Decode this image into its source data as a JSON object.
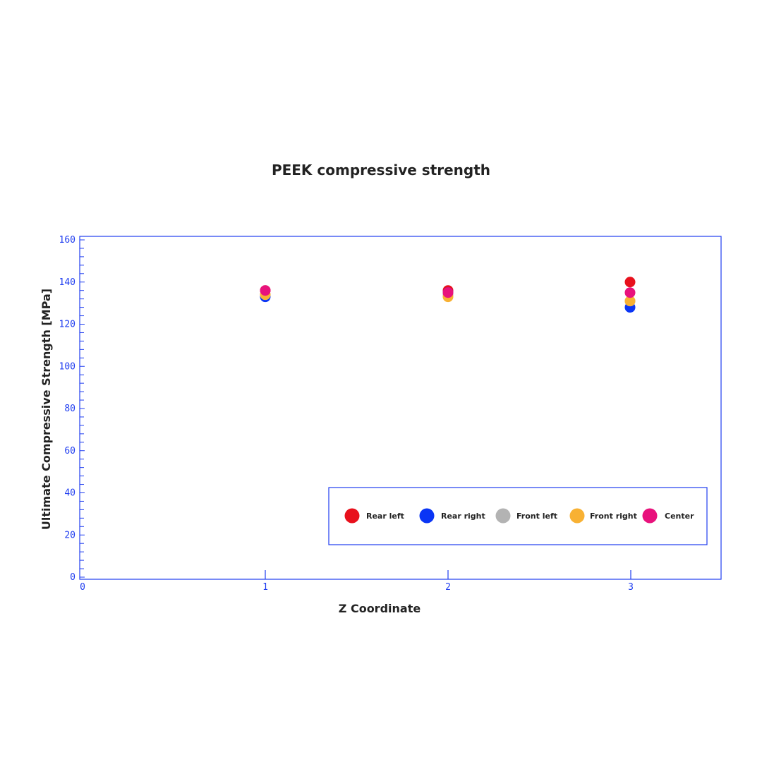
{
  "colors": {
    "axis": "#1f3df0",
    "text": "#222222",
    "rear_left": "#e8101c",
    "rear_right": "#0a35f5",
    "front_left": "#b3b3b3",
    "front_right": "#f8b133",
    "center": "#e8127c"
  },
  "chart_data": {
    "type": "scatter",
    "title": "PEEK compressive strength",
    "xlabel": "Z Coordinate",
    "ylabel": "Ultimate Compressive Strength [MPa]",
    "xlim": [
      0,
      3.5
    ],
    "ylim": [
      0,
      160
    ],
    "x_ticks": [
      "0",
      "1",
      "2",
      "3"
    ],
    "y_ticks": [
      "0",
      "20",
      "40",
      "60",
      "80",
      "100",
      "120",
      "140",
      "160"
    ],
    "grid": false,
    "legend_position": "bottom-right",
    "series": [
      {
        "name": "Rear left",
        "color_key": "rear_left",
        "x": [
          1,
          2,
          3
        ],
        "y": [
          136,
          136,
          140
        ]
      },
      {
        "name": "Rear right",
        "color_key": "rear_right",
        "x": [
          1,
          2,
          3
        ],
        "y": [
          133,
          135,
          128
        ]
      },
      {
        "name": "Front left",
        "color_key": "front_left",
        "x": [
          1,
          2,
          3
        ],
        "y": [
          134,
          134,
          131
        ]
      },
      {
        "name": "Front right",
        "color_key": "front_right",
        "x": [
          1,
          2,
          3
        ],
        "y": [
          134,
          133,
          131
        ]
      },
      {
        "name": "Center",
        "color_key": "center",
        "x": [
          1,
          2,
          3
        ],
        "y": [
          136,
          135,
          135
        ]
      }
    ]
  }
}
